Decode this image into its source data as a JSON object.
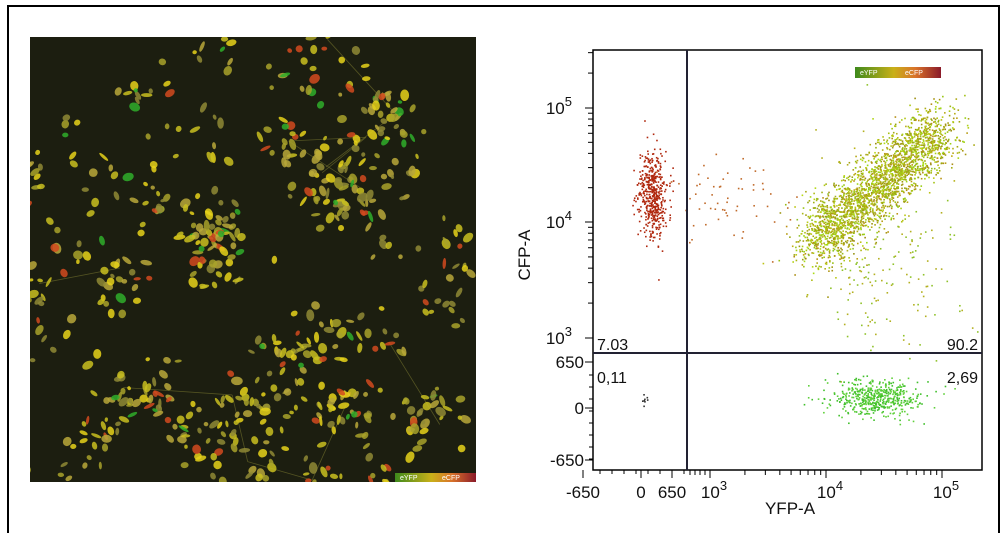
{
  "image": {
    "legend": [
      "eYFP",
      "eCFP"
    ]
  },
  "plot": {
    "x_axis_label": "YFP-A",
    "y_axis_label": "CFP-A",
    "legend": [
      "eYFP",
      "eCFP"
    ],
    "x_ticks": [
      {
        "text": "-650"
      },
      {
        "text": "0"
      },
      {
        "text": "650"
      },
      {
        "text": "10",
        "exp": "3"
      },
      {
        "text": "10",
        "exp": "4"
      },
      {
        "text": "10",
        "exp": "5"
      }
    ],
    "y_ticks": [
      {
        "text": "10",
        "exp": "5"
      },
      {
        "text": "10",
        "exp": "4"
      },
      {
        "text": "10",
        "exp": "3"
      },
      {
        "text": "650"
      },
      {
        "text": "0"
      },
      {
        "text": "-650"
      }
    ],
    "quadrants": {
      "upper_left": "7.03",
      "upper_right": "90.2",
      "lower_left": "0,11",
      "lower_right": "2,69"
    }
  }
}
